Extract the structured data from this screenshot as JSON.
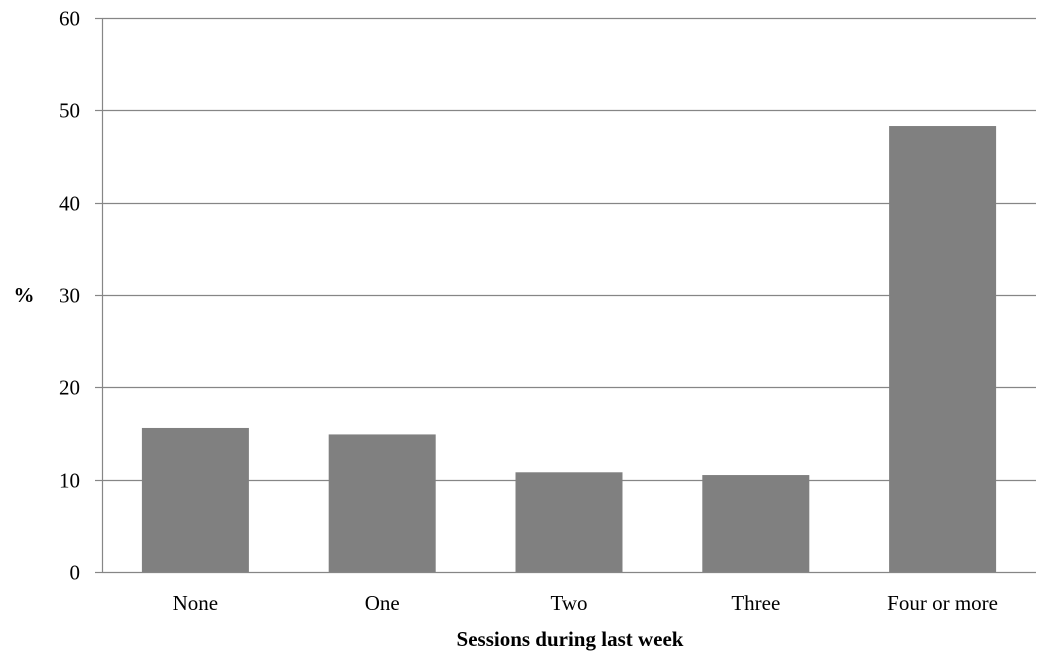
{
  "chart_data": {
    "type": "bar",
    "categories": [
      "None",
      "One",
      "Two",
      "Three",
      "Four or more"
    ],
    "values": [
      15.6,
      14.9,
      10.8,
      10.5,
      48.3
    ],
    "xlabel": "Sessions during last week",
    "ylabel": "%",
    "ylim": [
      0,
      60
    ],
    "yticks": [
      0,
      10,
      20,
      30,
      40,
      50,
      60
    ],
    "grid": true,
    "legend": "none",
    "colors": {
      "bar": "#808080",
      "grid": "#868686",
      "axis": "#868686"
    }
  }
}
